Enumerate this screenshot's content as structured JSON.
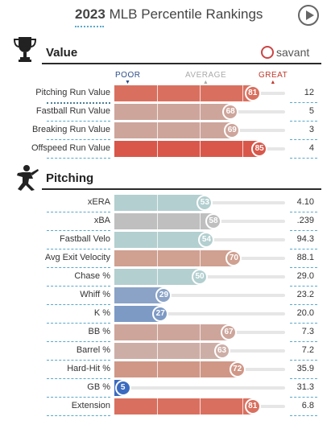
{
  "header": {
    "year": "2023",
    "title": "MLB Percentile Rankings"
  },
  "sections": {
    "value": {
      "title": "Value",
      "brand": "savant"
    },
    "pitching": {
      "title": "Pitching"
    }
  },
  "scale": {
    "poor": "POOR",
    "average": "AVERAGE",
    "great": "GREAT"
  },
  "value_rows": [
    {
      "label": "Pitching Run Value",
      "percentile": 81,
      "value": "12",
      "color": "#d9705f"
    },
    {
      "label": "Fastball Run Value",
      "percentile": 68,
      "value": "5",
      "color": "#cda59b"
    },
    {
      "label": "Breaking Run Value",
      "percentile": 69,
      "value": "3",
      "color": "#cda59b"
    },
    {
      "label": "Offspeed Run Value",
      "percentile": 85,
      "value": "4",
      "color": "#d9574a"
    }
  ],
  "pitching_rows": [
    {
      "label": "xERA",
      "percentile": 53,
      "value": "4.10",
      "color": "#b3cfd0"
    },
    {
      "label": "xBA",
      "percentile": 58,
      "value": ".239",
      "color": "#bfbfbf"
    },
    {
      "label": "Fastball Velo",
      "percentile": 54,
      "value": "94.3",
      "color": "#b3cfd0"
    },
    {
      "label": "Avg Exit Velocity",
      "percentile": 70,
      "value": "88.1",
      "color": "#d0a090"
    },
    {
      "label": "Chase %",
      "percentile": 50,
      "value": "29.0",
      "color": "#b3cfd0"
    },
    {
      "label": "Whiff %",
      "percentile": 29,
      "value": "23.2",
      "color": "#8aa3c7"
    },
    {
      "label": "K %",
      "percentile": 27,
      "value": "20.0",
      "color": "#7d9ac5"
    },
    {
      "label": "BB %",
      "percentile": 67,
      "value": "7.3",
      "color": "#cda59b"
    },
    {
      "label": "Barrel %",
      "percentile": 63,
      "value": "7.2",
      "color": "#cdaea6"
    },
    {
      "label": "Hard-Hit %",
      "percentile": 72,
      "value": "35.9",
      "color": "#d09787"
    },
    {
      "label": "GB %",
      "percentile": 5,
      "value": "31.3",
      "color": "#3b6bbf"
    },
    {
      "label": "Extension",
      "percentile": 81,
      "value": "6.8",
      "color": "#d9705f"
    }
  ],
  "icons": {
    "play": "play-icon",
    "trophy": "trophy-icon",
    "pitcher": "pitcher-icon",
    "logo": "savant-logo-icon"
  }
}
